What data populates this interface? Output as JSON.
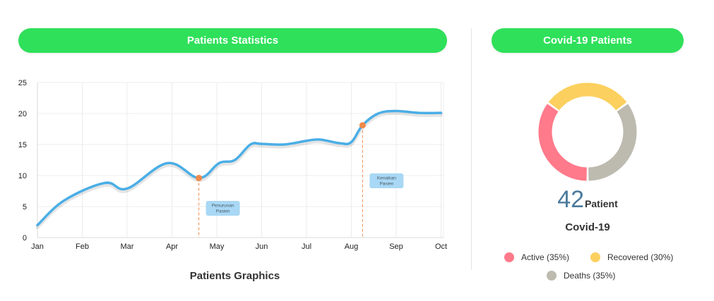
{
  "left_panel": {
    "title": "Patients Statistics",
    "graphics_title": "Patients Graphics"
  },
  "right_panel": {
    "title": "Covid-19 Patients",
    "count": "42",
    "count_unit": "Patient",
    "subtitle": "Covid-19",
    "legend": [
      {
        "label": "Active (35%)",
        "color": "#ff7a8a"
      },
      {
        "label": "Recovered (30%)",
        "color": "#fcd05e"
      },
      {
        "label": "Deaths (35%)",
        "color": "#bdbbb0"
      }
    ]
  },
  "colors": {
    "accent": "#2fe05a",
    "line": "#4aaee6",
    "marker": "#f08a4b",
    "annotation_bg": "#a8d8f5"
  },
  "chart_data": [
    {
      "type": "line",
      "categories": [
        "Jan",
        "Feb",
        "Mar",
        "Apr",
        "May",
        "Jun",
        "Jul",
        "Aug",
        "Sep",
        "Oct"
      ],
      "x": [
        0,
        0.6,
        1.5,
        2.0,
        2.9,
        3.6,
        4.05,
        4.4,
        4.75,
        5.0,
        5.5,
        6.0,
        6.3,
        6.75,
        7.0,
        7.25,
        7.6,
        8.0,
        8.5,
        9.0
      ],
      "y": [
        2,
        6,
        8.8,
        7.9,
        12,
        9.6,
        12,
        12.5,
        15,
        15.1,
        15,
        15.6,
        15.8,
        15.2,
        15.4,
        18.1,
        20,
        20.4,
        20.1,
        20.1
      ],
      "ylim": [
        0,
        25
      ],
      "yticks": [
        "0",
        "5",
        "10",
        "15",
        "20",
        "25"
      ],
      "grid": true,
      "annotations": [
        {
          "text": "Penurunan Pasien",
          "line1": "Penurunan",
          "line2": "Pasien",
          "x": 3.6,
          "y": 9.6
        },
        {
          "text": "Kenaikan Pasien",
          "line1": "Kenaikan",
          "line2": "Pasien",
          "x": 7.25,
          "y": 18.1
        }
      ]
    },
    {
      "type": "pie",
      "categories": [
        "Active",
        "Recovered",
        "Deaths"
      ],
      "values": [
        35,
        30,
        35
      ],
      "title": "Covid-19 Patients"
    }
  ]
}
